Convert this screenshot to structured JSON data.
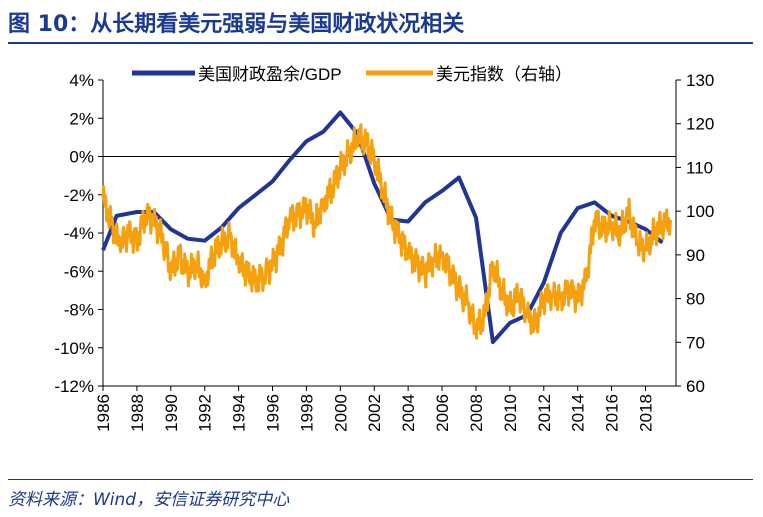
{
  "header": {
    "title": "图 10：从长期看美元强弱与美国财政状况相关"
  },
  "footer": {
    "source": "资料来源：Wind，安信证券研究中心"
  },
  "colors": {
    "title": "#1b3a8f",
    "fiscal_series": "#1f3694",
    "dollar_series": "#f5a00f"
  },
  "chart_data": {
    "type": "line",
    "title": "",
    "xlabel": "",
    "ylabel_left": "",
    "ylabel_right": "",
    "xlim": [
      1986,
      2019.8
    ],
    "ylim_left": [
      -12,
      4
    ],
    "ylim_right": [
      60,
      130
    ],
    "x_ticks": [
      "1986",
      "1988",
      "1990",
      "1992",
      "1994",
      "1996",
      "1998",
      "2000",
      "2002",
      "2004",
      "2006",
      "2008",
      "2010",
      "2012",
      "2014",
      "2016",
      "2018"
    ],
    "y_left_ticks": [
      "4%",
      "2%",
      "0%",
      "-2%",
      "-4%",
      "-6%",
      "-8%",
      "-10%",
      "-12%"
    ],
    "y_right_ticks": [
      "130",
      "120",
      "110",
      "100",
      "90",
      "80",
      "70",
      "60"
    ],
    "grid": false,
    "legend_position": "top",
    "series": [
      {
        "name": "美国财政盈余/GDP",
        "axis": "left",
        "x": [
          1986,
          1986.8,
          1988,
          1989,
          1990,
          1991,
          1992,
          1993,
          1994,
          1995,
          1996,
          1997,
          1998,
          1999,
          2000,
          2001,
          2002,
          2003,
          2004,
          2005,
          2006,
          2007,
          2008,
          2009,
          2010,
          2011,
          2012,
          2013,
          2014,
          2015,
          2016,
          2017,
          2018,
          2019
        ],
        "values": [
          -4.9,
          -3.1,
          -2.9,
          -2.9,
          -3.8,
          -4.3,
          -4.4,
          -3.7,
          -2.7,
          -2.0,
          -1.3,
          -0.2,
          0.8,
          1.3,
          2.3,
          1.2,
          -1.4,
          -3.3,
          -3.4,
          -2.4,
          -1.8,
          -1.1,
          -3.2,
          -9.7,
          -8.7,
          -8.3,
          -6.6,
          -4.0,
          -2.7,
          -2.4,
          -3.1,
          -3.4,
          -3.8,
          -4.5
        ]
      },
      {
        "name": "美元指数（右轴）",
        "axis": "right",
        "x": [
          1986,
          1986.5,
          1987,
          1987.5,
          1988,
          1988.5,
          1989,
          1989.5,
          1990,
          1990.5,
          1991,
          1991.5,
          1992,
          1992.5,
          1993,
          1993.5,
          1994,
          1994.5,
          1995,
          1995.5,
          1996,
          1996.5,
          1997,
          1997.5,
          1998,
          1998.5,
          1999,
          1999.5,
          2000,
          2000.5,
          2001,
          2001.5,
          2002,
          2002.5,
          2003,
          2003.5,
          2004,
          2004.5,
          2005,
          2005.5,
          2006,
          2006.5,
          2007,
          2007.5,
          2008,
          2008.5,
          2009,
          2009.5,
          2010,
          2010.5,
          2011,
          2011.5,
          2012,
          2012.5,
          2013,
          2013.5,
          2014,
          2014.5,
          2015,
          2015.5,
          2016,
          2016.5,
          2017,
          2017.5,
          2018,
          2018.5,
          2019,
          2019.5
        ],
        "values": [
          103,
          97,
          92,
          95,
          93,
          99,
          98,
          94,
          86,
          90,
          86,
          88,
          84,
          90,
          93,
          94,
          88,
          86,
          84,
          85,
          88,
          92,
          98,
          99,
          101,
          97,
          102,
          105,
          110,
          113,
          117,
          116,
          112,
          105,
          98,
          94,
          90,
          88,
          86,
          89,
          90,
          86,
          82,
          79,
          73,
          76,
          88,
          82,
          78,
          81,
          76,
          74,
          80,
          81,
          80,
          82,
          80,
          84,
          98,
          96,
          97,
          95,
          100,
          93,
          91,
          95,
          97,
          98
        ]
      }
    ]
  }
}
